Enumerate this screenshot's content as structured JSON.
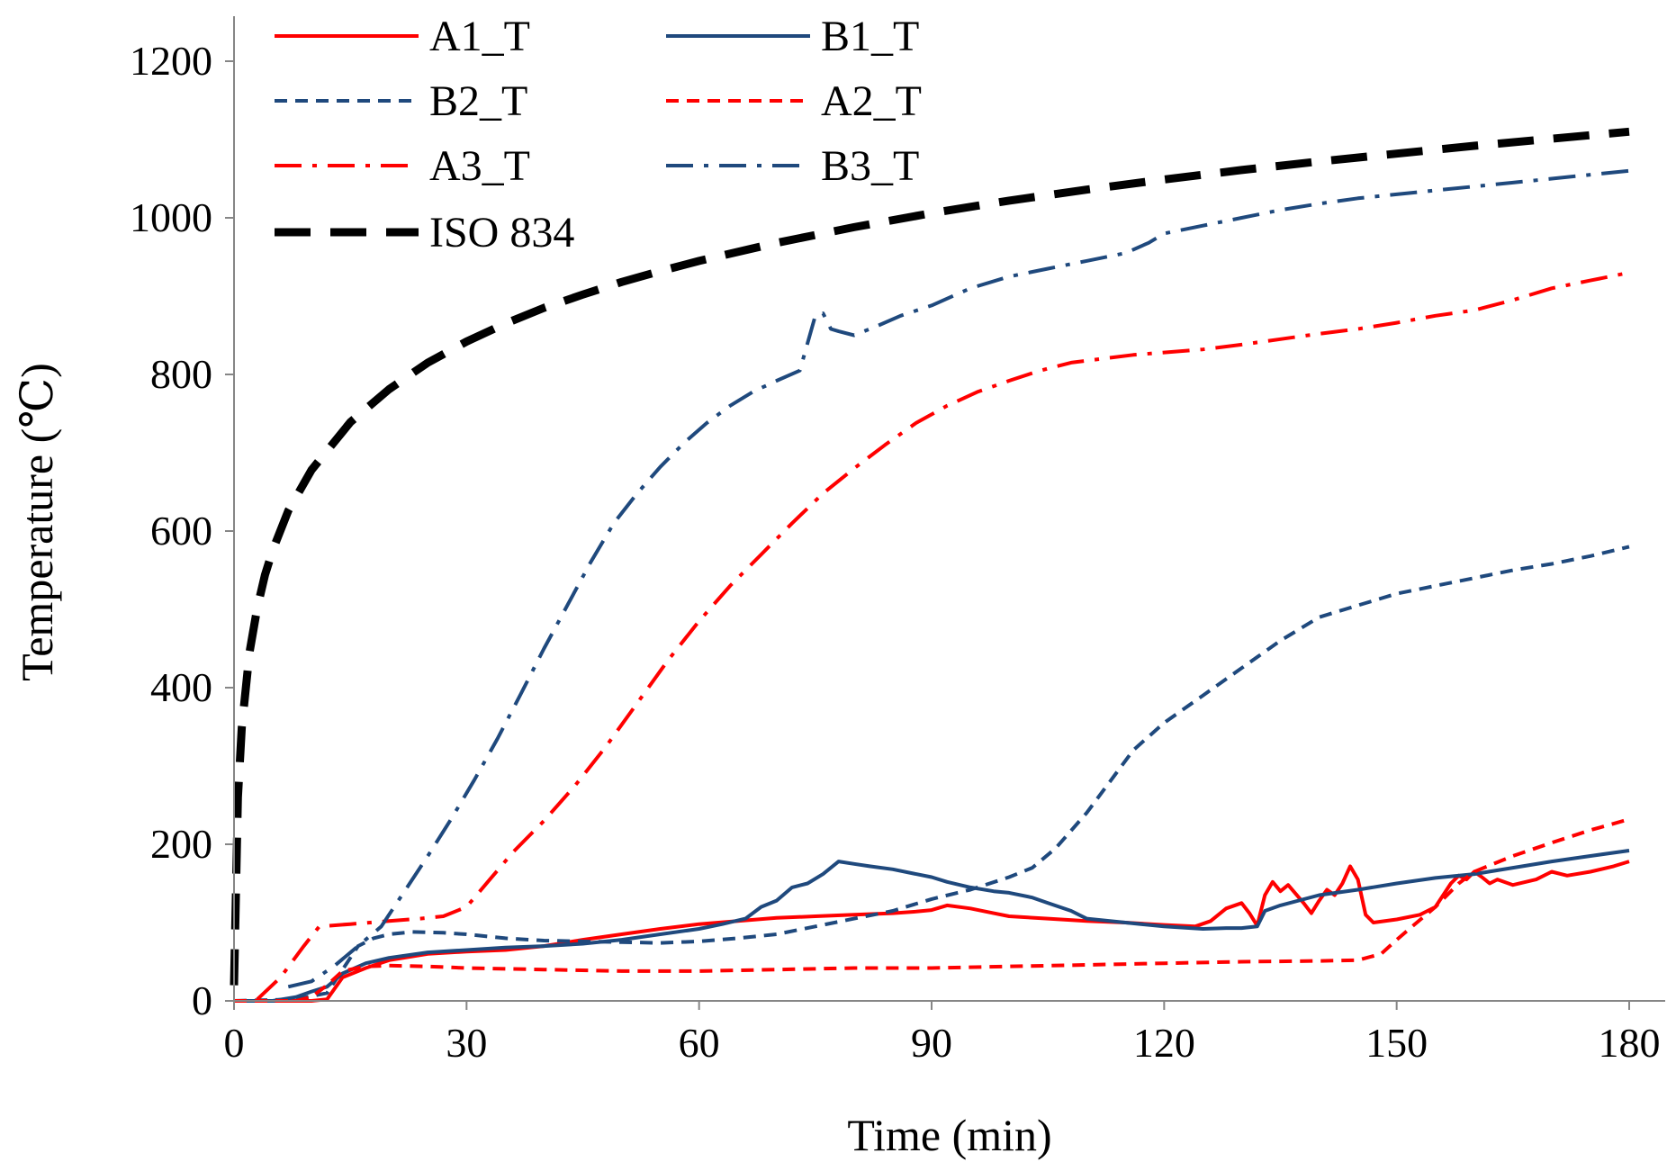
{
  "chart_data": {
    "type": "line",
    "title": "",
    "xlabel": "Time (min)",
    "ylabel": "Temperature (℃)",
    "xlim": [
      0,
      180
    ],
    "ylim": [
      0,
      1200
    ],
    "xticks": [
      0,
      30,
      60,
      90,
      120,
      150,
      180
    ],
    "yticks": [
      0,
      200,
      400,
      600,
      800,
      1000,
      1200
    ],
    "grid": false,
    "legend_position": "top-left",
    "series": [
      {
        "name": "A1_T",
        "color": "#ff0000",
        "dash": "solid",
        "points": [
          [
            0,
            0
          ],
          [
            5,
            0
          ],
          [
            10,
            0
          ],
          [
            12,
            2
          ],
          [
            14,
            30
          ],
          [
            17,
            42
          ],
          [
            20,
            52
          ],
          [
            25,
            60
          ],
          [
            30,
            63
          ],
          [
            35,
            65
          ],
          [
            40,
            70
          ],
          [
            45,
            78
          ],
          [
            50,
            85
          ],
          [
            55,
            92
          ],
          [
            60,
            98
          ],
          [
            65,
            102
          ],
          [
            70,
            106
          ],
          [
            75,
            108
          ],
          [
            80,
            110
          ],
          [
            85,
            112
          ],
          [
            88,
            114
          ],
          [
            90,
            116
          ],
          [
            92,
            122
          ],
          [
            95,
            118
          ],
          [
            98,
            112
          ],
          [
            100,
            108
          ],
          [
            105,
            105
          ],
          [
            110,
            102
          ],
          [
            115,
            100
          ],
          [
            120,
            97
          ],
          [
            124,
            95
          ],
          [
            126,
            102
          ],
          [
            128,
            118
          ],
          [
            130,
            125
          ],
          [
            131,
            112
          ],
          [
            132,
            96
          ],
          [
            133,
            135
          ],
          [
            134,
            152
          ],
          [
            135,
            140
          ],
          [
            136,
            148
          ],
          [
            138,
            125
          ],
          [
            139,
            112
          ],
          [
            140,
            128
          ],
          [
            141,
            142
          ],
          [
            142,
            135
          ],
          [
            143,
            150
          ],
          [
            144,
            172
          ],
          [
            145,
            155
          ],
          [
            146,
            110
          ],
          [
            147,
            100
          ],
          [
            150,
            104
          ],
          [
            153,
            110
          ],
          [
            155,
            120
          ],
          [
            157,
            150
          ],
          [
            158,
            160
          ],
          [
            159,
            155
          ],
          [
            160,
            165
          ],
          [
            161,
            158
          ],
          [
            162,
            150
          ],
          [
            163,
            155
          ],
          [
            165,
            148
          ],
          [
            168,
            155
          ],
          [
            170,
            165
          ],
          [
            172,
            160
          ],
          [
            175,
            165
          ],
          [
            178,
            172
          ],
          [
            180,
            178
          ]
        ]
      },
      {
        "name": "B1_T",
        "color": "#1f497d",
        "dash": "solid",
        "points": [
          [
            0,
            0
          ],
          [
            5,
            0
          ],
          [
            8,
            5
          ],
          [
            10,
            12
          ],
          [
            12,
            18
          ],
          [
            14,
            35
          ],
          [
            17,
            48
          ],
          [
            20,
            55
          ],
          [
            25,
            62
          ],
          [
            30,
            65
          ],
          [
            35,
            68
          ],
          [
            40,
            70
          ],
          [
            45,
            73
          ],
          [
            50,
            78
          ],
          [
            55,
            85
          ],
          [
            60,
            92
          ],
          [
            63,
            98
          ],
          [
            66,
            105
          ],
          [
            68,
            120
          ],
          [
            70,
            128
          ],
          [
            72,
            145
          ],
          [
            74,
            150
          ],
          [
            76,
            162
          ],
          [
            78,
            178
          ],
          [
            80,
            175
          ],
          [
            82,
            172
          ],
          [
            85,
            168
          ],
          [
            88,
            162
          ],
          [
            90,
            158
          ],
          [
            92,
            152
          ],
          [
            95,
            145
          ],
          [
            98,
            140
          ],
          [
            100,
            138
          ],
          [
            103,
            132
          ],
          [
            105,
            125
          ],
          [
            108,
            115
          ],
          [
            110,
            105
          ],
          [
            115,
            100
          ],
          [
            120,
            95
          ],
          [
            125,
            92
          ],
          [
            128,
            93
          ],
          [
            130,
            93
          ],
          [
            132,
            95
          ],
          [
            133,
            115
          ],
          [
            135,
            122
          ],
          [
            140,
            135
          ],
          [
            145,
            142
          ],
          [
            150,
            150
          ],
          [
            155,
            157
          ],
          [
            160,
            162
          ],
          [
            165,
            170
          ],
          [
            170,
            178
          ],
          [
            175,
            185
          ],
          [
            180,
            192
          ]
        ]
      },
      {
        "name": "B2_T",
        "color": "#1f497d",
        "dash": "short",
        "points": [
          [
            0,
            0
          ],
          [
            8,
            2
          ],
          [
            12,
            10
          ],
          [
            14,
            40
          ],
          [
            16,
            70
          ],
          [
            18,
            80
          ],
          [
            20,
            85
          ],
          [
            23,
            88
          ],
          [
            27,
            87
          ],
          [
            30,
            85
          ],
          [
            35,
            80
          ],
          [
            40,
            77
          ],
          [
            45,
            76
          ],
          [
            50,
            75
          ],
          [
            55,
            74
          ],
          [
            60,
            76
          ],
          [
            65,
            80
          ],
          [
            70,
            85
          ],
          [
            75,
            95
          ],
          [
            80,
            105
          ],
          [
            85,
            115
          ],
          [
            90,
            130
          ],
          [
            95,
            142
          ],
          [
            100,
            158
          ],
          [
            103,
            170
          ],
          [
            106,
            195
          ],
          [
            110,
            240
          ],
          [
            113,
            280
          ],
          [
            116,
            320
          ],
          [
            120,
            355
          ],
          [
            125,
            390
          ],
          [
            130,
            425
          ],
          [
            135,
            460
          ],
          [
            140,
            490
          ],
          [
            145,
            505
          ],
          [
            150,
            520
          ],
          [
            155,
            530
          ],
          [
            160,
            540
          ],
          [
            165,
            550
          ],
          [
            170,
            558
          ],
          [
            175,
            568
          ],
          [
            180,
            580
          ]
        ]
      },
      {
        "name": "A2_T",
        "color": "#ff0000",
        "dash": "short",
        "points": [
          [
            0,
            0
          ],
          [
            8,
            0
          ],
          [
            10,
            5
          ],
          [
            12,
            20
          ],
          [
            14,
            38
          ],
          [
            17,
            44
          ],
          [
            20,
            45
          ],
          [
            25,
            44
          ],
          [
            30,
            42
          ],
          [
            40,
            40
          ],
          [
            50,
            38
          ],
          [
            60,
            38
          ],
          [
            70,
            40
          ],
          [
            80,
            42
          ],
          [
            90,
            42
          ],
          [
            100,
            44
          ],
          [
            110,
            46
          ],
          [
            120,
            48
          ],
          [
            130,
            50
          ],
          [
            140,
            51
          ],
          [
            145,
            52
          ],
          [
            148,
            60
          ],
          [
            150,
            78
          ],
          [
            152,
            95
          ],
          [
            155,
            120
          ],
          [
            158,
            150
          ],
          [
            160,
            165
          ],
          [
            165,
            185
          ],
          [
            170,
            202
          ],
          [
            175,
            218
          ],
          [
            180,
            232
          ]
        ]
      },
      {
        "name": "A3_T",
        "color": "#ff0000",
        "dash": "dashdot",
        "points": [
          [
            3,
            2
          ],
          [
            6,
            30
          ],
          [
            9,
            70
          ],
          [
            11,
            95
          ],
          [
            15,
            98
          ],
          [
            20,
            102
          ],
          [
            24,
            105
          ],
          [
            27,
            108
          ],
          [
            30,
            120
          ],
          [
            33,
            155
          ],
          [
            36,
            190
          ],
          [
            40,
            230
          ],
          [
            44,
            275
          ],
          [
            48,
            325
          ],
          [
            52,
            380
          ],
          [
            56,
            435
          ],
          [
            60,
            485
          ],
          [
            64,
            530
          ],
          [
            68,
            570
          ],
          [
            72,
            610
          ],
          [
            76,
            648
          ],
          [
            80,
            680
          ],
          [
            84,
            710
          ],
          [
            88,
            738
          ],
          [
            92,
            760
          ],
          [
            96,
            778
          ],
          [
            100,
            792
          ],
          [
            104,
            805
          ],
          [
            108,
            815
          ],
          [
            112,
            820
          ],
          [
            116,
            825
          ],
          [
            120,
            828
          ],
          [
            125,
            832
          ],
          [
            130,
            838
          ],
          [
            135,
            845
          ],
          [
            140,
            852
          ],
          [
            145,
            858
          ],
          [
            150,
            866
          ],
          [
            155,
            875
          ],
          [
            160,
            882
          ],
          [
            165,
            895
          ],
          [
            170,
            910
          ],
          [
            175,
            920
          ],
          [
            180,
            930
          ]
        ]
      },
      {
        "name": "B3_T",
        "color": "#1f497d",
        "dash": "dashdot",
        "points": [
          [
            7,
            18
          ],
          [
            10,
            25
          ],
          [
            13,
            45
          ],
          [
            16,
            70
          ],
          [
            19,
            95
          ],
          [
            22,
            140
          ],
          [
            25,
            185
          ],
          [
            28,
            232
          ],
          [
            31,
            282
          ],
          [
            34,
            335
          ],
          [
            37,
            392
          ],
          [
            40,
            450
          ],
          [
            43,
            505
          ],
          [
            46,
            560
          ],
          [
            49,
            610
          ],
          [
            52,
            648
          ],
          [
            55,
            682
          ],
          [
            58,
            712
          ],
          [
            61,
            738
          ],
          [
            64,
            760
          ],
          [
            67,
            778
          ],
          [
            70,
            792
          ],
          [
            73,
            805
          ],
          [
            74,
            840
          ],
          [
            75,
            875
          ],
          [
            76,
            878
          ],
          [
            77,
            858
          ],
          [
            78,
            855
          ],
          [
            80,
            850
          ],
          [
            83,
            862
          ],
          [
            86,
            875
          ],
          [
            90,
            888
          ],
          [
            95,
            910
          ],
          [
            100,
            925
          ],
          [
            105,
            935
          ],
          [
            110,
            945
          ],
          [
            115,
            955
          ],
          [
            118,
            968
          ],
          [
            120,
            980
          ],
          [
            125,
            990
          ],
          [
            130,
            1000
          ],
          [
            135,
            1010
          ],
          [
            140,
            1018
          ],
          [
            145,
            1025
          ],
          [
            150,
            1030
          ],
          [
            155,
            1035
          ],
          [
            160,
            1040
          ],
          [
            165,
            1045
          ],
          [
            170,
            1050
          ],
          [
            175,
            1055
          ],
          [
            180,
            1060
          ]
        ]
      },
      {
        "name": "ISO 834",
        "color": "#000000",
        "dash": "long",
        "points": [
          [
            0,
            20
          ],
          [
            0.5,
            260
          ],
          [
            1,
            349
          ],
          [
            2,
            445
          ],
          [
            3,
            502
          ],
          [
            4,
            544
          ],
          [
            5,
            576
          ],
          [
            7,
            626
          ],
          [
            10,
            678
          ],
          [
            15,
            739
          ],
          [
            20,
            781
          ],
          [
            25,
            815
          ],
          [
            30,
            842
          ],
          [
            35,
            865
          ],
          [
            40,
            885
          ],
          [
            45,
            902
          ],
          [
            50,
            918
          ],
          [
            55,
            932
          ],
          [
            60,
            945
          ],
          [
            70,
            968
          ],
          [
            80,
            988
          ],
          [
            90,
            1006
          ],
          [
            100,
            1022
          ],
          [
            110,
            1036
          ],
          [
            120,
            1049
          ],
          [
            130,
            1061
          ],
          [
            140,
            1072
          ],
          [
            150,
            1082
          ],
          [
            160,
            1092
          ],
          [
            170,
            1101
          ],
          [
            180,
            1110
          ]
        ]
      }
    ]
  }
}
